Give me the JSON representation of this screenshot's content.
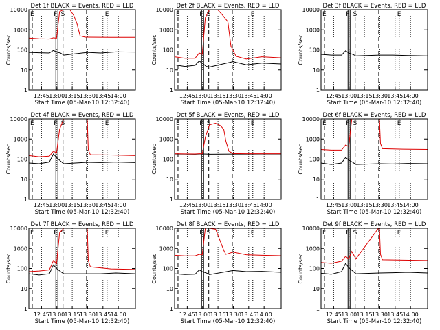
{
  "chart_data": {
    "type": "line",
    "x_tick_labels": [
      "12:45",
      "13:00",
      "13:15",
      "13:30",
      "13:45",
      "14:00"
    ],
    "xlabel": "Start Time (05-Mar-10 12:32:40)",
    "ylabel": "Counts/sec",
    "y_tick_labels": [
      "1",
      "10",
      "100",
      "1000",
      "10000"
    ],
    "y_scale": "log",
    "ylim": [
      1,
      10000
    ],
    "xlim_minutes_after_12_32_40": [
      0,
      104
    ],
    "markers": [
      {
        "label": "E",
        "time": "12:36",
        "style": "dashed"
      },
      {
        "label": "F",
        "time": "12:59",
        "style": "solid"
      },
      {
        "label": "",
        "time": "13:01",
        "style": "solid"
      },
      {
        "label": "S",
        "time": "13:06",
        "style": "dashed"
      },
      {
        "label": "",
        "time": "13:29",
        "style": "dashed"
      },
      {
        "label": "E",
        "time": "13:49",
        "style": "dotted"
      }
    ],
    "grid_x_dotted": [
      "12:45",
      "13:00",
      "13:15",
      "13:30",
      "13:45",
      "14:00"
    ],
    "panels": [
      {
        "title": "Det 1f BLACK = Events, RED = LLD",
        "series": [
          {
            "color": "#000000",
            "points": [
              [
                0,
                75
              ],
              [
                10,
                72
              ],
              [
                20,
                70
              ],
              [
                24,
                95
              ],
              [
                27,
                78
              ],
              [
                31,
                70
              ],
              [
                34,
                55
              ],
              [
                57,
                75
              ],
              [
                70,
                70
              ],
              [
                85,
                80
              ],
              [
                104,
                78
              ]
            ]
          },
          {
            "color": "#dd0000",
            "points": [
              [
                0,
                390
              ],
              [
                10,
                360
              ],
              [
                20,
                350
              ],
              [
                24,
                400
              ],
              [
                27,
                380
              ],
              [
                30,
                8000
              ],
              [
                34,
                10000
              ],
              [
                40,
                10000
              ],
              [
                44,
                5000
              ],
              [
                47,
                2000
              ],
              [
                50,
                500
              ],
              [
                55,
                430
              ],
              [
                80,
                420
              ],
              [
                104,
                420
              ]
            ]
          }
        ]
      },
      {
        "title": "Det 2f BLACK = Events, RED = LLD",
        "series": [
          {
            "color": "#000000",
            "points": [
              [
                0,
                18
              ],
              [
                10,
                15
              ],
              [
                20,
                17
              ],
              [
                24,
                28
              ],
              [
                27,
                22
              ],
              [
                31,
                15
              ],
              [
                34,
                14
              ],
              [
                57,
                26
              ],
              [
                70,
                18
              ],
              [
                85,
                22
              ],
              [
                104,
                20
              ]
            ]
          },
          {
            "color": "#dd0000",
            "points": [
              [
                0,
                45
              ],
              [
                10,
                38
              ],
              [
                20,
                38
              ],
              [
                24,
                70
              ],
              [
                27,
                60
              ],
              [
                30,
                4000
              ],
              [
                34,
                10000
              ],
              [
                42,
                10000
              ],
              [
                46,
                6000
              ],
              [
                52,
                2500
              ],
              [
                55,
                150
              ],
              [
                60,
                48
              ],
              [
                70,
                35
              ],
              [
                85,
                45
              ],
              [
                104,
                40
              ]
            ]
          }
        ]
      },
      {
        "title": "Det 3f BLACK = Events, RED = LLD",
        "series": [
          {
            "color": "#000000",
            "points": [
              [
                0,
                60
              ],
              [
                10,
                55
              ],
              [
                20,
                55
              ],
              [
                24,
                90
              ],
              [
                27,
                70
              ],
              [
                31,
                60
              ],
              [
                34,
                50
              ],
              [
                57,
                55
              ],
              [
                70,
                55
              ],
              [
                85,
                52
              ],
              [
                104,
                50
              ]
            ]
          }
        ]
      },
      {
        "title": "Det 4f BLACK = Events, RED = LLD",
        "series": [
          {
            "color": "#000000",
            "points": [
              [
                0,
                65
              ],
              [
                10,
                60
              ],
              [
                20,
                72
              ],
              [
                24,
                180
              ],
              [
                27,
                120
              ],
              [
                31,
                80
              ],
              [
                34,
                60
              ],
              [
                57,
                70
              ],
              [
                70,
                68
              ],
              [
                85,
                72
              ],
              [
                104,
                68
              ]
            ]
          },
          {
            "color": "#dd0000",
            "points": [
              [
                0,
                150
              ],
              [
                10,
                130
              ],
              [
                20,
                140
              ],
              [
                24,
                250
              ],
              [
                27,
                200
              ],
              [
                30,
                3000
              ],
              [
                34,
                10000
              ],
              [
                57,
                10000
              ],
              [
                58,
                300
              ],
              [
                60,
                165
              ],
              [
                80,
                160
              ],
              [
                104,
                150
              ]
            ]
          }
        ]
      },
      {
        "title": "Det 5f BLACK = Events, RED = LLD",
        "series": [
          {
            "color": "#000000",
            "points": [
              [
                0,
                180
              ],
              [
                10,
                178
              ],
              [
                20,
                175
              ],
              [
                24,
                180
              ],
              [
                27,
                180
              ],
              [
                31,
                178
              ],
              [
                34,
                176
              ],
              [
                57,
                178
              ],
              [
                70,
                178
              ],
              [
                85,
                180
              ],
              [
                104,
                180
              ]
            ]
          },
          {
            "color": "#dd0000",
            "points": [
              [
                0,
                185
              ],
              [
                10,
                182
              ],
              [
                20,
                180
              ],
              [
                24,
                185
              ],
              [
                27,
                185
              ],
              [
                30,
                1200
              ],
              [
                34,
                5000
              ],
              [
                40,
                6000
              ],
              [
                45,
                4500
              ],
              [
                48,
                3000
              ],
              [
                50,
                800
              ],
              [
                53,
                250
              ],
              [
                57,
                190
              ],
              [
                70,
                185
              ],
              [
                104,
                185
              ]
            ]
          }
        ]
      },
      {
        "title": "Det 6f BLACK = Events, RED = LLD",
        "series": [
          {
            "color": "#000000",
            "points": [
              [
                0,
                65
              ],
              [
                10,
                55
              ],
              [
                20,
                65
              ],
              [
                24,
                120
              ],
              [
                27,
                90
              ],
              [
                31,
                70
              ],
              [
                34,
                55
              ],
              [
                57,
                60
              ],
              [
                70,
                58
              ],
              [
                85,
                62
              ],
              [
                104,
                60
              ]
            ]
          },
          {
            "color": "#dd0000",
            "points": [
              [
                0,
                300
              ],
              [
                10,
                280
              ],
              [
                20,
                280
              ],
              [
                24,
                500
              ],
              [
                27,
                420
              ],
              [
                30,
                10000
              ],
              [
                57,
                10000
              ],
              [
                58,
                600
              ],
              [
                60,
                330
              ],
              [
                80,
                310
              ],
              [
                104,
                300
              ]
            ]
          }
        ]
      },
      {
        "title": "Det 7f BLACK = Events, RED = LLD",
        "series": [
          {
            "color": "#000000",
            "points": [
              [
                0,
                55
              ],
              [
                10,
                48
              ],
              [
                20,
                55
              ],
              [
                24,
                150
              ],
              [
                27,
                100
              ],
              [
                31,
                70
              ],
              [
                34,
                55
              ],
              [
                57,
                55
              ],
              [
                70,
                55
              ],
              [
                85,
                60
              ],
              [
                104,
                55
              ]
            ]
          },
          {
            "color": "#dd0000",
            "points": [
              [
                0,
                70
              ],
              [
                10,
                75
              ],
              [
                20,
                85
              ],
              [
                24,
                250
              ],
              [
                27,
                170
              ],
              [
                30,
                6000
              ],
              [
                34,
                10000
              ],
              [
                57,
                10000
              ],
              [
                58,
                250
              ],
              [
                60,
                120
              ],
              [
                80,
                95
              ],
              [
                104,
                90
              ]
            ]
          }
        ]
      },
      {
        "title": "Det 8f BLACK = Events, RED = LLD",
        "series": [
          {
            "color": "#000000",
            "points": [
              [
                0,
                55
              ],
              [
                10,
                50
              ],
              [
                20,
                52
              ],
              [
                24,
                85
              ],
              [
                27,
                70
              ],
              [
                31,
                60
              ],
              [
                34,
                50
              ],
              [
                57,
                80
              ],
              [
                70,
                70
              ],
              [
                85,
                72
              ],
              [
                104,
                65
              ]
            ]
          },
          {
            "color": "#dd0000",
            "points": [
              [
                0,
                450
              ],
              [
                10,
                420
              ],
              [
                20,
                420
              ],
              [
                24,
                500
              ],
              [
                27,
                480
              ],
              [
                30,
                10000
              ],
              [
                34,
                10000
              ],
              [
                40,
                9000
              ],
              [
                48,
                800
              ],
              [
                50,
                500
              ],
              [
                57,
                650
              ],
              [
                70,
                480
              ],
              [
                85,
                450
              ],
              [
                104,
                430
              ]
            ]
          }
        ]
      },
      {
        "title": "Det 9f BLACK = Events, RED = LLD",
        "series": [
          {
            "color": "#000000",
            "points": [
              [
                0,
                58
              ],
              [
                10,
                52
              ],
              [
                20,
                70
              ],
              [
                24,
                180
              ],
              [
                27,
                110
              ],
              [
                31,
                75
              ],
              [
                34,
                55
              ],
              [
                57,
                60
              ],
              [
                70,
                62
              ],
              [
                85,
                65
              ],
              [
                104,
                60
              ]
            ]
          },
          {
            "color": "#dd0000",
            "points": [
              [
                0,
                200
              ],
              [
                10,
                180
              ],
              [
                20,
                230
              ],
              [
                24,
                400
              ],
              [
                27,
                300
              ],
              [
                30,
                700
              ],
              [
                34,
                300
              ],
              [
                56,
                10000
              ],
              [
                57,
                10000
              ],
              [
                58,
                500
              ],
              [
                60,
                270
              ],
              [
                80,
                260
              ],
              [
                104,
                250
              ]
            ]
          }
        ]
      }
    ]
  }
}
